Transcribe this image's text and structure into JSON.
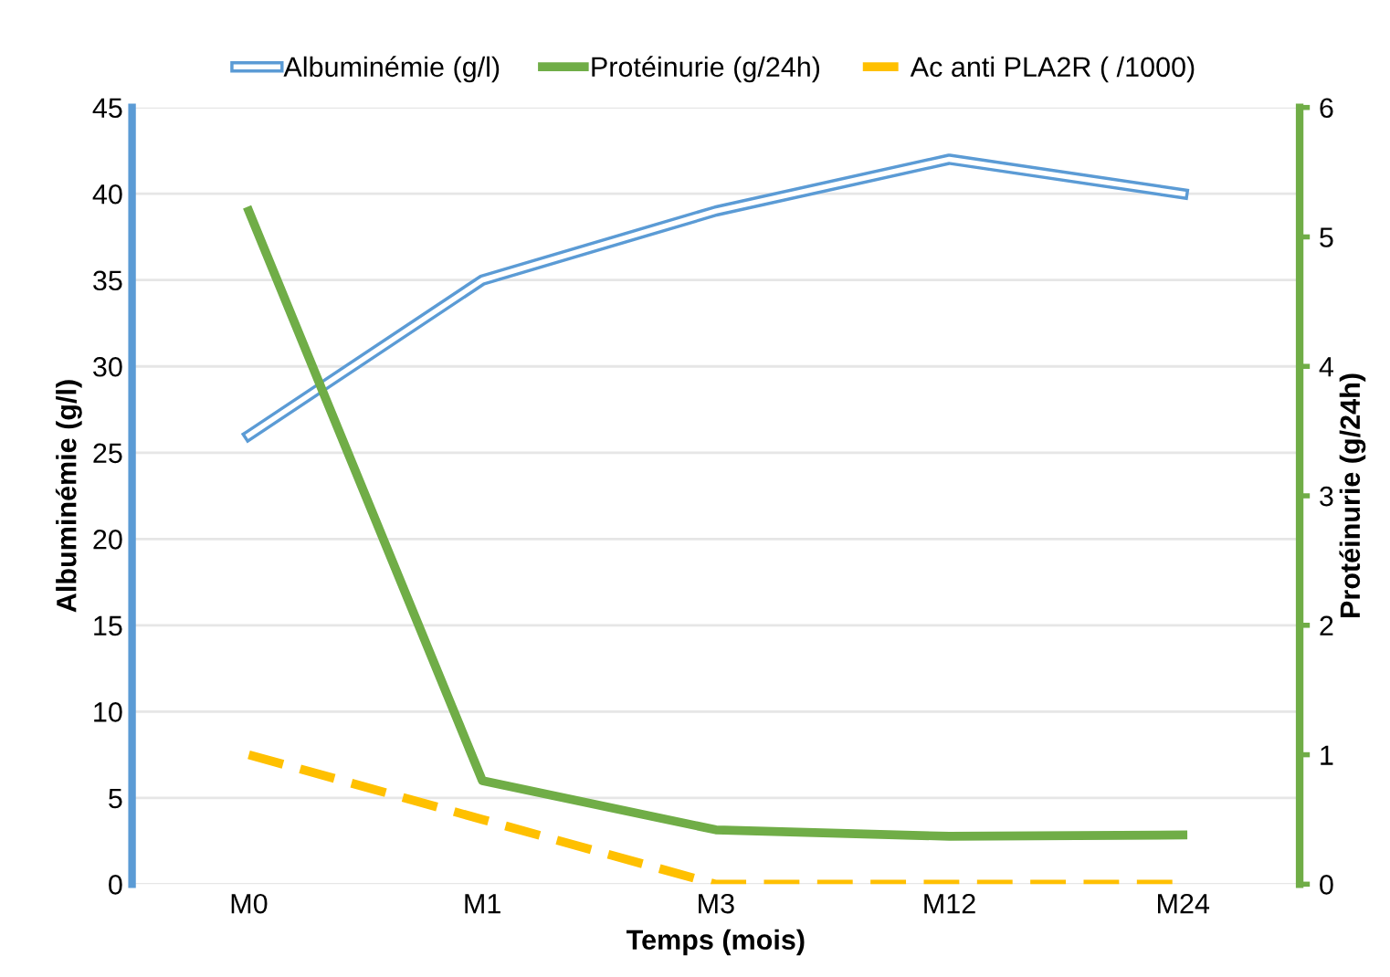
{
  "chart_data": {
    "type": "line",
    "xlabel": "Temps (mois)",
    "ylabel": "Albuminémie (g/l)",
    "y2label": "Protéinurie (g/24h)",
    "categories": [
      "M0",
      "M1",
      "M3",
      "M12",
      "M24"
    ],
    "series": [
      {
        "name": "Albuminémie (g/l)",
        "color": "#5b9bd5",
        "values": [
          26,
          35,
          39,
          42,
          40
        ],
        "line_style": "solid"
      },
      {
        "name": "Protéinurie (g/24h)",
        "color": "#70ad47",
        "values": [
          5.2,
          0.8,
          0.42,
          0.37,
          0.38
        ],
        "axis": "y2",
        "line_style": "solid"
      },
      {
        "name": "Ac anti PLA2R ( /1000)",
        "color": "#ffc000",
        "values": [
          1,
          0.5,
          0,
          0,
          0
        ],
        "axis": "y2",
        "line_style": "dashed"
      }
    ],
    "ylim": [
      0,
      45
    ],
    "yticks": [
      0,
      5,
      10,
      15,
      20,
      25,
      30,
      35,
      40,
      45
    ],
    "y2lim": [
      0,
      6
    ],
    "y2ticks": [
      0,
      1,
      2,
      3,
      4,
      5,
      6
    ],
    "grid": "y",
    "legend": "top",
    "marker": "none"
  }
}
